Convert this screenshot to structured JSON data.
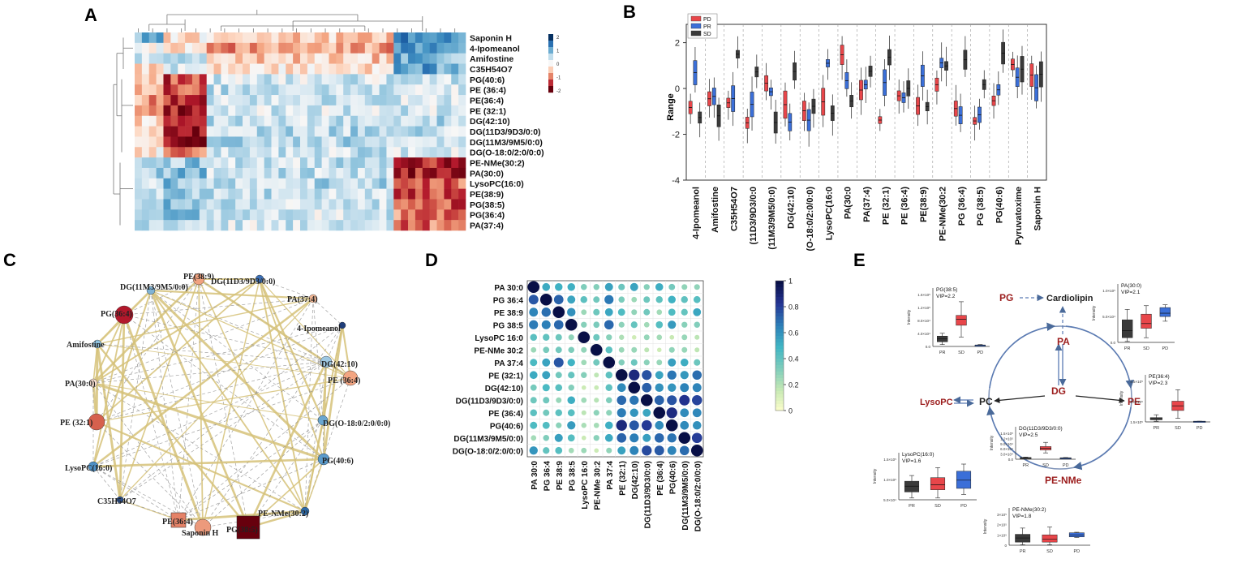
{
  "panels": {
    "A": {
      "letter": "A",
      "rows": [
        "Saponin H",
        "4-Ipomeanol",
        "Amifostine",
        "C35H54O7",
        "PG(40:6)",
        "PE (36:4)",
        "PE(36:4)",
        "PE (32:1)",
        "DG(42:10)",
        "DG(11D3/9D3/0:0)",
        "DG(11M3/9M5/0:0)",
        "DG(O-18:0/2:0/0:0)",
        "PE-NMe(30:2)",
        "PA(30:0)",
        "LysoPC(16:0)",
        "PE(38:9)",
        "PG(38:5)",
        "PG(36:4)",
        "PA(37:4)"
      ],
      "colorbar_ticks": [
        "2",
        "1",
        "0",
        "-1",
        "-2"
      ],
      "colors": {
        "high": "#08306b",
        "mid": "#f7f7f7",
        "low": "#67000d"
      }
    },
    "B": {
      "letter": "B",
      "ylabel": "Range",
      "yticks": [
        "2",
        "0",
        "-2",
        "-4"
      ],
      "legend": [
        {
          "label": "PD",
          "color": "#e8464a"
        },
        {
          "label": "PR",
          "color": "#3b6fd8"
        },
        {
          "label": "SD",
          "color": "#3a3a3a"
        }
      ],
      "categories": [
        "4-Ipomeanol",
        "Amifostine",
        "C35H54O7",
        "(11D3/9D3/0:0",
        "(11M3/9M5/0:0)",
        "DG(42:10)",
        "(O-18:0/2:0/0:0)",
        "LysoPC(16:0",
        "PA(30:0",
        "PA(37:4)",
        "PE (32:1)",
        "PE (36:4)",
        "PE(38:9)",
        "PE-NMe(30:2",
        "PG (36:4)",
        "PG (38:5)",
        "PG(40:6)",
        "Pyruvatoxime",
        "Saponin H"
      ]
    },
    "C": {
      "letter": "C",
      "nodes": [
        {
          "label": "PE(38:9)",
          "color": "#f1a27f",
          "r": 7
        },
        {
          "label": "DG(11D3/9D3/0:0)",
          "color": "#3d70b5",
          "r": 5
        },
        {
          "label": "DG(11M3/9M5/0:0)",
          "color": "#7fb3d5",
          "r": 5
        },
        {
          "label": "PA(37:4)",
          "color": "#f4b896",
          "r": 5
        },
        {
          "label": "PG(36:4)",
          "color": "#b2182b",
          "r": 11
        },
        {
          "label": "4-Ipomeanol",
          "color": "#1f3e7a",
          "r": 4
        },
        {
          "label": "Amifostine",
          "color": "#8fc1de",
          "r": 5
        },
        {
          "label": "DG(42:10)",
          "color": "#9ec8e2",
          "r": 7
        },
        {
          "label": "PA(30:0)",
          "color": "#fbe0d2",
          "r": 5
        },
        {
          "label": "PE (36:4)",
          "color": "#f3a582",
          "r": 9
        },
        {
          "label": "PE (32:1)",
          "color": "#d6604d",
          "r": 10
        },
        {
          "label": "DG(O-18:0/2:0/0:0)",
          "color": "#6aa7d0",
          "r": 6
        },
        {
          "label": "LysoPC(16:0)",
          "color": "#4d90c5",
          "r": 6
        },
        {
          "label": "PG(40:6)",
          "color": "#5b9bcb",
          "r": 7
        },
        {
          "label": "C35H54O7",
          "color": "#2a4f8c",
          "r": 4
        },
        {
          "label": "PE-NMe(30:2)",
          "color": "#2d6aa8",
          "r": 5
        },
        {
          "label": "PE(36:4)",
          "color": "#e58267",
          "r": 9
        },
        {
          "label": "Saponin H",
          "color": "#ec9a7c",
          "r": 10
        },
        {
          "label": "PG(38:5)",
          "color": "#67000d",
          "r": 14
        }
      ]
    },
    "D": {
      "letter": "D",
      "labels": [
        "PA 30:0",
        "PG 36:4",
        "PE 38:9",
        "PG 38:5",
        "LysoPC 16:0",
        "PE-NMe 30:2",
        "PA 37:4",
        "PE (32:1)",
        "DG(42:10)",
        "DG(11D3/9D3/0:0)",
        "PE (36:4)",
        "PG(40:6)",
        "DG(11M3/9M5/0:0)",
        "DG(O-18:0/2:0/0:0)"
      ],
      "colorbar_ticks": [
        "1",
        "0.8",
        "0.6",
        "0.4",
        "0.2",
        "0"
      ]
    },
    "E": {
      "letter": "E",
      "nodes": {
        "pg": "PG",
        "cardiolipin": "Cardiolipin",
        "pa": "PA",
        "dg": "DG",
        "lysopc": "LysoPC",
        "pc": "PC",
        "pe": "PE",
        "penme": "PE-NMe"
      },
      "ylabel": "Intensity",
      "groups": [
        "PR",
        "SD",
        "PD"
      ],
      "plots": [
        {
          "title": "PG(38:5)",
          "vip": "VIP=2.2",
          "yticks": [
            "1.6×10⁵",
            "1.2×10⁵",
            "8.0×10⁴",
            "4.0×10⁴",
            "0.0"
          ],
          "boxes": [
            [
              0.04,
              0.1,
              0.16,
              0.22,
              0.28
            ],
            [
              0.2,
              0.45,
              0.58,
              0.66,
              0.95
            ],
            [
              0.02,
              0.02,
              0.03,
              0.03,
              0.04
            ]
          ]
        },
        {
          "title": "PA(30:0)",
          "vip": "VIP=2.1",
          "yticks": [
            "1.0×10⁵",
            "5.0×10⁴",
            "0.0"
          ],
          "boxes": [
            [
              0.02,
              0.1,
              0.25,
              0.48,
              0.7
            ],
            [
              0.1,
              0.3,
              0.4,
              0.6,
              0.78
            ],
            [
              0.45,
              0.55,
              0.62,
              0.74,
              0.8
            ]
          ]
        },
        {
          "title": "PE(36:4)",
          "vip": "VIP=2.3",
          "yticks": [
            "4.5×10⁵",
            "3.0×10⁵",
            "1.5×10⁵"
          ],
          "boxes": [
            [
              0.02,
              0.06,
              0.08,
              0.12,
              0.2
            ],
            [
              0.1,
              0.32,
              0.45,
              0.58,
              0.9
            ],
            [
              0.01,
              0.01,
              0.015,
              0.02,
              0.02
            ]
          ]
        },
        {
          "title": "DG(11D3/9D3/0:0)",
          "vip": "VIP=2.5",
          "yticks": [
            "1.5×10⁵",
            "1.2×10⁵",
            "9.0×10⁴",
            "6.0×10⁴",
            "3.0×10⁴",
            "0.0"
          ],
          "boxes": [
            [
              0.05,
              0.06,
              0.07,
              0.08,
              0.1
            ],
            [
              0.3,
              0.44,
              0.52,
              0.6,
              0.8
            ],
            [
              0.04,
              0.05,
              0.06,
              0.07,
              0.08
            ]
          ]
        },
        {
          "title": "LysoPC(16:0)",
          "vip": "VIP=1.6",
          "yticks": [
            "1.5×10⁵",
            "1.0×10⁵",
            "5.0×10⁴"
          ],
          "boxes": [
            [
              0.05,
              0.22,
              0.38,
              0.52,
              0.68
            ],
            [
              0.05,
              0.28,
              0.42,
              0.62,
              0.9
            ],
            [
              0.15,
              0.32,
              0.55,
              0.8,
              1.0
            ]
          ]
        },
        {
          "title": "PE-NMe(30:2)",
          "vip": "VIP=1.8",
          "yticks": [
            "3×10⁵",
            "2×10⁵",
            "1×10⁵",
            "0"
          ],
          "boxes": [
            [
              0.02,
              0.12,
              0.28,
              0.42,
              0.66
            ],
            [
              0.02,
              0.12,
              0.24,
              0.4,
              0.7
            ],
            [
              0.3,
              0.32,
              0.4,
              0.48,
              0.5
            ]
          ]
        }
      ]
    }
  }
}
